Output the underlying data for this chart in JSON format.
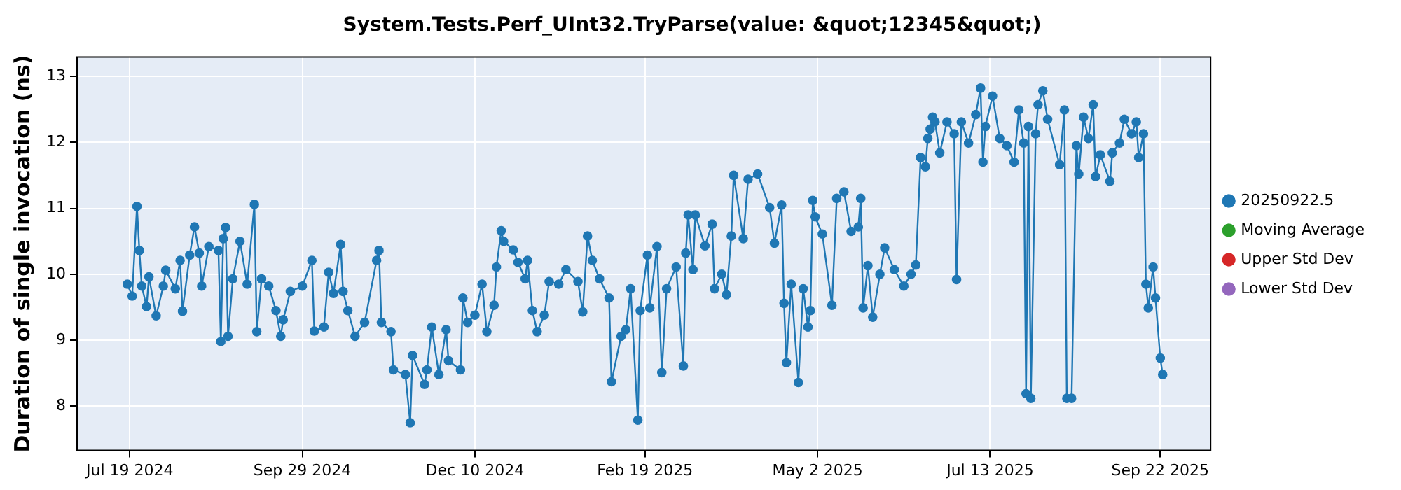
{
  "chart_data": {
    "type": "line",
    "title": "System.Tests.Perf_UInt32.TryParse(value: &quot;12345&quot;)",
    "ylabel": "Duration of single invocation (ns)",
    "xlim": [
      "2024-06-27",
      "2025-10-13"
    ],
    "xticks": [
      {
        "value": "2024-07-19",
        "label": "Jul 19 2024"
      },
      {
        "value": "2024-09-29",
        "label": "Sep 29 2024"
      },
      {
        "value": "2024-12-10",
        "label": "Dec 10 2024"
      },
      {
        "value": "2025-02-19",
        "label": "Feb 19 2025"
      },
      {
        "value": "2025-05-02",
        "label": "May 2 2025"
      },
      {
        "value": "2025-07-13",
        "label": "Jul 13 2025"
      },
      {
        "value": "2025-09-22",
        "label": "Sep 22 2025"
      }
    ],
    "ylim": [
      7.33,
      13.29
    ],
    "yticks": [
      8,
      9,
      10,
      11,
      12,
      13
    ],
    "grid": true,
    "legend": "right",
    "marker": "circle",
    "line_style": "solid",
    "series": [
      {
        "name": "20250922.5",
        "color": "#1f77b4",
        "x": [
          "2024-07-18",
          "2024-07-20",
          "2024-07-22",
          "2024-07-23",
          "2024-07-24",
          "2024-07-26",
          "2024-07-27",
          "2024-07-30",
          "2024-08-02",
          "2024-08-03",
          "2024-08-07",
          "2024-08-09",
          "2024-08-10",
          "2024-08-13",
          "2024-08-15",
          "2024-08-17",
          "2024-08-18",
          "2024-08-21",
          "2024-08-25",
          "2024-08-26",
          "2024-08-27",
          "2024-08-28",
          "2024-08-29",
          "2024-08-31",
          "2024-09-03",
          "2024-09-06",
          "2024-09-09",
          "2024-09-10",
          "2024-09-12",
          "2024-09-15",
          "2024-09-18",
          "2024-09-20",
          "2024-09-21",
          "2024-09-24",
          "2024-09-29",
          "2024-10-03",
          "2024-10-04",
          "2024-10-08",
          "2024-10-10",
          "2024-10-12",
          "2024-10-15",
          "2024-10-16",
          "2024-10-18",
          "2024-10-21",
          "2024-10-25",
          "2024-10-30",
          "2024-10-31",
          "2024-11-01",
          "2024-11-05",
          "2024-11-06",
          "2024-11-11",
          "2024-11-13",
          "2024-11-14",
          "2024-11-19",
          "2024-11-20",
          "2024-11-22",
          "2024-11-25",
          "2024-11-28",
          "2024-11-29",
          "2024-12-04",
          "2024-12-05",
          "2024-12-07",
          "2024-12-10",
          "2024-12-13",
          "2024-12-15",
          "2024-12-18",
          "2024-12-19",
          "2024-12-21",
          "2024-12-22",
          "2024-12-26",
          "2024-12-28",
          "2024-12-31",
          "2025-01-01",
          "2025-01-03",
          "2025-01-05",
          "2025-01-08",
          "2025-01-10",
          "2025-01-14",
          "2025-01-17",
          "2025-01-22",
          "2025-01-24",
          "2025-01-26",
          "2025-01-28",
          "2025-01-31",
          "2025-02-04",
          "2025-02-05",
          "2025-02-09",
          "2025-02-11",
          "2025-02-13",
          "2025-02-16",
          "2025-02-17",
          "2025-02-20",
          "2025-02-21",
          "2025-02-24",
          "2025-02-26",
          "2025-02-28",
          "2025-03-04",
          "2025-03-07",
          "2025-03-08",
          "2025-03-09",
          "2025-03-11",
          "2025-03-12",
          "2025-03-16",
          "2025-03-19",
          "2025-03-20",
          "2025-03-23",
          "2025-03-25",
          "2025-03-27",
          "2025-03-28",
          "2025-04-01",
          "2025-04-03",
          "2025-04-07",
          "2025-04-12",
          "2025-04-14",
          "2025-04-17",
          "2025-04-18",
          "2025-04-19",
          "2025-04-21",
          "2025-04-24",
          "2025-04-26",
          "2025-04-28",
          "2025-04-29",
          "2025-04-30",
          "2025-05-01",
          "2025-05-04",
          "2025-05-08",
          "2025-05-10",
          "2025-05-13",
          "2025-05-16",
          "2025-05-19",
          "2025-05-20",
          "2025-05-21",
          "2025-05-23",
          "2025-05-25",
          "2025-05-28",
          "2025-05-30",
          "2025-06-03",
          "2025-06-07",
          "2025-06-10",
          "2025-06-12",
          "2025-06-14",
          "2025-06-16",
          "2025-06-17",
          "2025-06-18",
          "2025-06-19",
          "2025-06-20",
          "2025-06-22",
          "2025-06-25",
          "2025-06-28",
          "2025-06-29",
          "2025-07-01",
          "2025-07-04",
          "2025-07-07",
          "2025-07-09",
          "2025-07-10",
          "2025-07-11",
          "2025-07-14",
          "2025-07-17",
          "2025-07-20",
          "2025-07-23",
          "2025-07-25",
          "2025-07-27",
          "2025-07-28",
          "2025-07-29",
          "2025-07-30",
          "2025-08-01",
          "2025-08-02",
          "2025-08-04",
          "2025-08-06",
          "2025-08-11",
          "2025-08-13",
          "2025-08-14",
          "2025-08-16",
          "2025-08-18",
          "2025-08-19",
          "2025-08-21",
          "2025-08-23",
          "2025-08-25",
          "2025-08-26",
          "2025-08-28",
          "2025-09-01",
          "2025-09-02",
          "2025-09-05",
          "2025-09-07",
          "2025-09-10",
          "2025-09-12",
          "2025-09-13",
          "2025-09-15",
          "2025-09-16",
          "2025-09-17",
          "2025-09-19",
          "2025-09-20",
          "2025-09-22",
          "2025-09-23"
        ],
        "values": [
          9.85,
          9.67,
          11.03,
          10.36,
          9.82,
          9.51,
          9.96,
          9.37,
          9.82,
          10.06,
          9.78,
          10.21,
          9.44,
          10.29,
          10.72,
          10.32,
          9.82,
          10.42,
          10.36,
          8.98,
          10.54,
          10.71,
          9.06,
          9.93,
          10.5,
          9.85,
          11.06,
          9.13,
          9.93,
          9.82,
          9.45,
          9.06,
          9.31,
          9.74,
          9.82,
          10.21,
          9.14,
          9.2,
          10.03,
          9.71,
          10.45,
          9.74,
          9.45,
          9.06,
          9.27,
          10.21,
          10.36,
          9.27,
          9.13,
          8.55,
          8.48,
          7.75,
          8.77,
          8.33,
          8.55,
          9.2,
          8.48,
          9.16,
          8.69,
          8.55,
          9.64,
          9.27,
          9.38,
          9.85,
          9.13,
          9.53,
          10.11,
          10.66,
          10.5,
          10.37,
          10.18,
          9.93,
          10.21,
          9.45,
          9.13,
          9.38,
          9.89,
          9.85,
          10.07,
          9.89,
          9.43,
          10.58,
          10.21,
          9.93,
          9.64,
          8.37,
          9.06,
          9.16,
          9.78,
          7.79,
          9.45,
          10.29,
          9.49,
          10.42,
          8.51,
          9.78,
          10.11,
          8.61,
          10.32,
          10.9,
          10.07,
          10.9,
          10.43,
          10.76,
          9.78,
          10.0,
          9.69,
          10.58,
          11.5,
          10.54,
          11.44,
          11.52,
          11.01,
          10.47,
          11.05,
          9.56,
          8.66,
          9.85,
          8.36,
          9.78,
          9.2,
          9.45,
          11.12,
          10.87,
          10.61,
          9.53,
          11.15,
          11.25,
          10.65,
          10.72,
          11.15,
          9.49,
          10.13,
          9.35,
          10.0,
          10.4,
          10.07,
          9.82,
          10.0,
          10.14,
          11.77,
          11.63,
          12.06,
          12.2,
          12.38,
          12.31,
          11.84,
          12.31,
          12.13,
          9.92,
          12.31,
          11.99,
          12.42,
          12.82,
          11.7,
          12.24,
          12.7,
          12.06,
          11.95,
          11.7,
          12.49,
          11.99,
          8.19,
          12.24,
          8.12,
          12.13,
          12.57,
          12.78,
          12.35,
          11.66,
          12.49,
          8.12,
          8.12,
          11.95,
          11.52,
          12.38,
          12.06,
          12.57,
          11.48,
          11.81,
          11.41,
          11.84,
          11.99,
          12.35,
          12.13,
          12.31,
          11.77,
          12.13,
          9.85,
          9.49,
          10.11,
          9.64,
          8.73,
          8.48
        ]
      },
      {
        "name": "Moving Average",
        "color": "#2ca02c"
      },
      {
        "name": "Upper Std Dev",
        "color": "#d62728"
      },
      {
        "name": "Lower Std Dev",
        "color": "#9467bd"
      }
    ]
  }
}
